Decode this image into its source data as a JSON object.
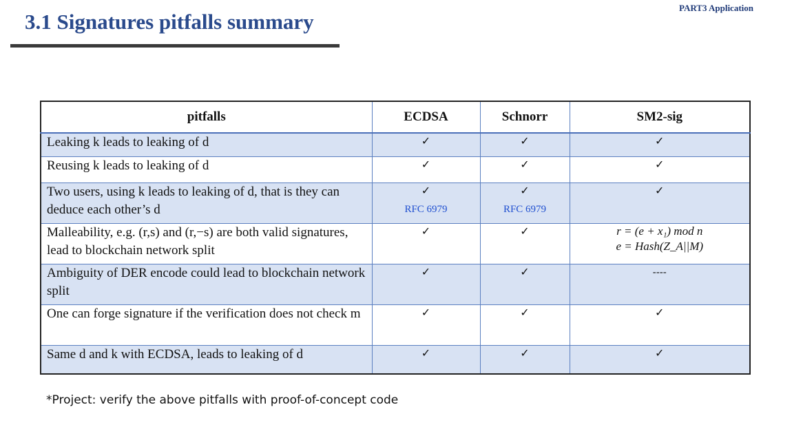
{
  "header": {
    "part_label": "PART3 Application",
    "title": "3.1  Signatures pitfalls summary"
  },
  "table": {
    "columns": [
      "pitfalls",
      "ECDSA",
      "Schnorr",
      "SM2-sig"
    ],
    "rows": [
      {
        "pitfall": "Leaking k leads to leaking of d",
        "ecdsa": "✓",
        "schnorr": "✓",
        "sm2": "✓",
        "ecdsa_note": "",
        "schnorr_note": ""
      },
      {
        "pitfall": "Reusing k leads to leaking of d",
        "ecdsa": "✓",
        "schnorr": "✓",
        "sm2": "✓",
        "ecdsa_note": "",
        "schnorr_note": ""
      },
      {
        "pitfall": "Two users, using k leads to leaking of d, that is they can deduce each other’s d",
        "ecdsa": "✓",
        "schnorr": "✓",
        "sm2": "✓",
        "ecdsa_note": "RFC 6979",
        "schnorr_note": "RFC 6979"
      },
      {
        "pitfall": "Malleability, e.g. (r,s) and (r,−s) are both valid signatures, lead to blockchain network split",
        "ecdsa": "✓",
        "schnorr": "✓",
        "sm2": "",
        "ecdsa_note": "",
        "schnorr_note": "",
        "sm2_formula": [
          "r = (e + x₁) mod n",
          "e = Hash(Z_A||M)"
        ]
      },
      {
        "pitfall": "Ambiguity of DER encode could lead to blockchain network split",
        "ecdsa": "✓",
        "schnorr": "✓",
        "sm2": "----",
        "ecdsa_note": "",
        "schnorr_note": ""
      },
      {
        "pitfall": "One can forge signature if the verification does not check m",
        "ecdsa": "✓",
        "schnorr": "✓",
        "sm2": "✓",
        "ecdsa_note": "",
        "schnorr_note": ""
      },
      {
        "pitfall": "Same d and k with ECDSA, leads to leaking of d",
        "ecdsa": "✓",
        "schnorr": "✓",
        "sm2": "✓",
        "ecdsa_note": "",
        "schnorr_note": ""
      }
    ]
  },
  "footer": {
    "project_note": "*Project: verify the above pitfalls with proof-of-concept code"
  }
}
